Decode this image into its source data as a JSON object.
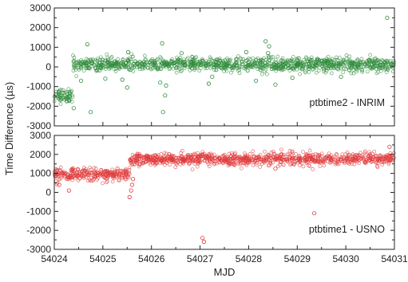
{
  "chart_data": [
    {
      "type": "scatter",
      "panel": "top",
      "annotation": "ptbtime2 - INRIM",
      "marker": "open-circle",
      "color": "#2e8b3a",
      "xlim": [
        54024,
        54031
      ],
      "ylim": [
        -3000,
        3000
      ],
      "yticks": [
        -3000,
        -2000,
        -1000,
        0,
        1000,
        2000,
        3000
      ],
      "segments": [
        {
          "x_start": 54024.0,
          "x_end": 54024.38,
          "level": -1450,
          "scatter": 180
        },
        {
          "x_start": 54024.38,
          "x_end": 54031.0,
          "level": 120,
          "scatter": 170
        }
      ],
      "outliers": [
        {
          "x": 54024.68,
          "y": 1150
        },
        {
          "x": 54024.55,
          "y": -700
        },
        {
          "x": 54024.75,
          "y": -2300
        },
        {
          "x": 54024.4,
          "y": -2100
        },
        {
          "x": 54025.05,
          "y": -600
        },
        {
          "x": 54025.4,
          "y": -650
        },
        {
          "x": 54025.52,
          "y": 750
        },
        {
          "x": 54025.5,
          "y": -1050
        },
        {
          "x": 54026.22,
          "y": 1200
        },
        {
          "x": 54026.24,
          "y": -2300
        },
        {
          "x": 54026.28,
          "y": -1450
        },
        {
          "x": 54026.3,
          "y": -950
        },
        {
          "x": 54026.18,
          "y": -800
        },
        {
          "x": 54026.62,
          "y": 700
        },
        {
          "x": 54027.18,
          "y": -850
        },
        {
          "x": 54027.25,
          "y": -500
        },
        {
          "x": 54027.95,
          "y": 750
        },
        {
          "x": 54028.15,
          "y": -700
        },
        {
          "x": 54028.35,
          "y": 1300
        },
        {
          "x": 54028.42,
          "y": 1050
        },
        {
          "x": 54028.4,
          "y": 700
        },
        {
          "x": 54028.55,
          "y": -900
        },
        {
          "x": 54028.9,
          "y": -550
        },
        {
          "x": 54029.9,
          "y": -500
        },
        {
          "x": 54030.85,
          "y": 2500
        }
      ]
    },
    {
      "type": "scatter",
      "panel": "bottom",
      "annotation": "ptbtime1 - USNO",
      "marker": "open-circle",
      "color": "#e0393b",
      "xlim": [
        54024,
        54031
      ],
      "ylim": [
        -3000,
        3000
      ],
      "yticks": [
        -3000,
        -2000,
        -1000,
        0,
        1000,
        2000,
        3000
      ],
      "xticks": [
        54024,
        54025,
        54026,
        54027,
        54028,
        54029,
        54030,
        54031
      ],
      "xlabel": "MJD",
      "segments": [
        {
          "x_start": 54024.0,
          "x_end": 54025.55,
          "level": 950,
          "scatter": 160
        },
        {
          "x_start": 54025.55,
          "x_end": 54031.0,
          "level": 1750,
          "scatter": 160
        }
      ],
      "outliers": [
        {
          "x": 54024.3,
          "y": 100
        },
        {
          "x": 54024.1,
          "y": 400
        },
        {
          "x": 54025.55,
          "y": -250
        },
        {
          "x": 54025.58,
          "y": 100
        },
        {
          "x": 54025.6,
          "y": 400
        },
        {
          "x": 54025.62,
          "y": 700
        },
        {
          "x": 54025.3,
          "y": 1250
        },
        {
          "x": 54027.05,
          "y": -2400
        },
        {
          "x": 54027.08,
          "y": -2600
        },
        {
          "x": 54029.35,
          "y": -1100
        },
        {
          "x": 54028.55,
          "y": 1250
        },
        {
          "x": 54030.9,
          "y": 2400
        }
      ]
    }
  ],
  "shared": {
    "ylabel": "Time Difference (µs)"
  }
}
